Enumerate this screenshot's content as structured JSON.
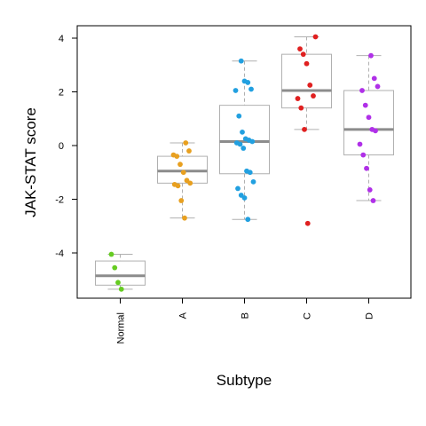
{
  "chart_data": {
    "type": "boxplot",
    "xlabel": "Subtype",
    "ylabel": "JAK-STAT score",
    "ylim": [
      -5.8,
      4.5
    ],
    "y_ticks": [
      -4,
      -2,
      0,
      2,
      4
    ],
    "categories": [
      "Normal",
      "A",
      "B",
      "C",
      "D"
    ],
    "colors": {
      "Normal": "#66cc22",
      "A": "#e8a020",
      "B": "#22a0e0",
      "C": "#e02020",
      "D": "#b030e8",
      "box": "#b0b0b0",
      "median": "#8c8c8c",
      "axis": "#000000"
    },
    "boxes": [
      {
        "category": "Normal",
        "min": -5.35,
        "q1": -5.2,
        "median": -4.85,
        "q3": -4.3,
        "max": -4.05
      },
      {
        "category": "A",
        "min": -2.7,
        "q1": -1.4,
        "median": -0.95,
        "q3": -0.4,
        "max": 0.1
      },
      {
        "category": "B",
        "min": -2.75,
        "q1": -1.05,
        "median": 0.15,
        "q3": 1.5,
        "max": 3.15
      },
      {
        "category": "C",
        "min": 0.6,
        "q1": 1.4,
        "median": 2.05,
        "q3": 3.4,
        "max": 4.05
      },
      {
        "category": "D",
        "min": -2.05,
        "q1": -0.35,
        "median": 0.6,
        "q3": 2.05,
        "max": 3.35
      }
    ],
    "points": {
      "Normal": [
        -4.05,
        -4.55,
        -5.1,
        -5.35
      ],
      "A": [
        0.1,
        -0.2,
        -0.35,
        -0.4,
        -0.7,
        -1.0,
        -1.3,
        -1.4,
        -1.45,
        -1.5,
        -2.05,
        -2.7
      ],
      "B": [
        3.15,
        2.4,
        2.35,
        2.1,
        2.05,
        1.1,
        0.5,
        0.25,
        0.2,
        0.15,
        0.1,
        0.05,
        -0.1,
        -0.95,
        -1.0,
        -1.35,
        -1.6,
        -1.85,
        -1.95,
        -2.75
      ],
      "C": [
        4.05,
        3.6,
        3.4,
        3.05,
        2.25,
        1.85,
        1.75,
        1.4,
        0.6,
        -2.9
      ],
      "D": [
        3.35,
        2.5,
        2.2,
        2.05,
        1.5,
        1.05,
        0.6,
        0.55,
        0.05,
        -0.35,
        -0.85,
        -1.65,
        -2.05
      ]
    }
  }
}
